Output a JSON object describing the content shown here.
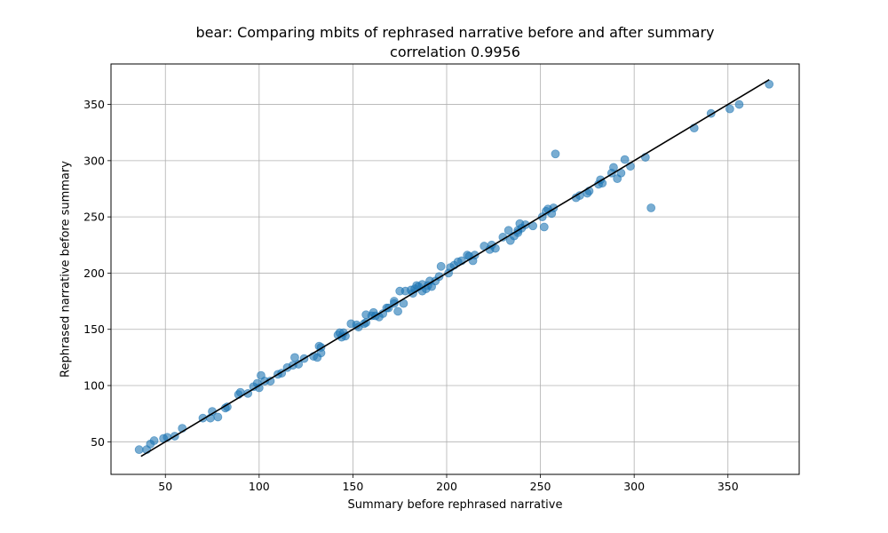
{
  "chart_data": {
    "type": "scatter",
    "title": "bear: Comparing mbits of rephrased narrative before and after summary",
    "subtitle": "correlation 0.9956",
    "xlabel": "Summary before rephrased narrative",
    "ylabel": "Rephrased narrative before summary",
    "xlim": [
      21,
      388
    ],
    "ylim": [
      21,
      386
    ],
    "xticks": [
      50,
      100,
      150,
      200,
      250,
      300,
      350
    ],
    "yticks": [
      50,
      100,
      150,
      200,
      250,
      300,
      350
    ],
    "grid": true,
    "marker_color": "#1f77b4",
    "marker_alpha": 0.6,
    "fit_line": {
      "color": "#000000",
      "x": [
        37,
        372
      ],
      "y": [
        37,
        372
      ]
    },
    "points": [
      [
        36,
        43
      ],
      [
        40,
        43
      ],
      [
        42,
        48
      ],
      [
        44,
        51
      ],
      [
        49,
        53
      ],
      [
        51,
        54
      ],
      [
        55,
        55
      ],
      [
        59,
        62
      ],
      [
        70,
        71
      ],
      [
        74,
        71
      ],
      [
        75,
        77
      ],
      [
        78,
        72
      ],
      [
        82,
        80
      ],
      [
        83,
        81
      ],
      [
        89,
        92
      ],
      [
        90,
        94
      ],
      [
        94,
        93
      ],
      [
        97,
        99
      ],
      [
        99,
        102
      ],
      [
        100,
        98
      ],
      [
        101,
        109
      ],
      [
        103,
        104
      ],
      [
        106,
        104
      ],
      [
        110,
        110
      ],
      [
        112,
        111
      ],
      [
        115,
        116
      ],
      [
        118,
        118
      ],
      [
        119,
        125
      ],
      [
        121,
        119
      ],
      [
        124,
        124
      ],
      [
        129,
        126
      ],
      [
        131,
        125
      ],
      [
        132,
        135
      ],
      [
        133,
        134
      ],
      [
        133,
        129
      ],
      [
        142,
        145
      ],
      [
        143,
        147
      ],
      [
        144,
        143
      ],
      [
        145,
        147
      ],
      [
        146,
        144
      ],
      [
        149,
        155
      ],
      [
        152,
        154
      ],
      [
        153,
        152
      ],
      [
        156,
        155
      ],
      [
        157,
        163
      ],
      [
        157,
        156
      ],
      [
        160,
        162
      ],
      [
        161,
        165
      ],
      [
        162,
        162
      ],
      [
        164,
        161
      ],
      [
        166,
        164
      ],
      [
        168,
        169
      ],
      [
        169,
        169
      ],
      [
        172,
        175
      ],
      [
        172,
        173
      ],
      [
        174,
        166
      ],
      [
        175,
        184
      ],
      [
        177,
        173
      ],
      [
        178,
        184
      ],
      [
        181,
        185
      ],
      [
        182,
        182
      ],
      [
        183,
        186
      ],
      [
        184,
        189
      ],
      [
        185,
        188
      ],
      [
        187,
        190
      ],
      [
        187,
        184
      ],
      [
        189,
        186
      ],
      [
        190,
        189
      ],
      [
        191,
        193
      ],
      [
        192,
        188
      ],
      [
        194,
        193
      ],
      [
        196,
        197
      ],
      [
        197,
        206
      ],
      [
        201,
        200
      ],
      [
        202,
        205
      ],
      [
        204,
        207
      ],
      [
        206,
        210
      ],
      [
        208,
        211
      ],
      [
        211,
        216
      ],
      [
        212,
        215
      ],
      [
        214,
        211
      ],
      [
        215,
        216
      ],
      [
        220,
        224
      ],
      [
        223,
        221
      ],
      [
        224,
        225
      ],
      [
        226,
        222
      ],
      [
        230,
        232
      ],
      [
        233,
        238
      ],
      [
        234,
        229
      ],
      [
        236,
        233
      ],
      [
        238,
        238
      ],
      [
        238,
        236
      ],
      [
        239,
        244
      ],
      [
        240,
        240
      ],
      [
        242,
        243
      ],
      [
        246,
        242
      ],
      [
        251,
        250
      ],
      [
        252,
        241
      ],
      [
        253,
        255
      ],
      [
        254,
        257
      ],
      [
        256,
        253
      ],
      [
        257,
        258
      ],
      [
        258,
        306
      ],
      [
        269,
        267
      ],
      [
        271,
        269
      ],
      [
        275,
        271
      ],
      [
        276,
        273
      ],
      [
        281,
        279
      ],
      [
        282,
        283
      ],
      [
        283,
        280
      ],
      [
        288,
        289
      ],
      [
        289,
        294
      ],
      [
        291,
        284
      ],
      [
        293,
        289
      ],
      [
        295,
        301
      ],
      [
        298,
        295
      ],
      [
        306,
        303
      ],
      [
        309,
        258
      ],
      [
        332,
        329
      ],
      [
        341,
        342
      ],
      [
        351,
        346
      ],
      [
        356,
        350
      ],
      [
        372,
        368
      ]
    ]
  }
}
